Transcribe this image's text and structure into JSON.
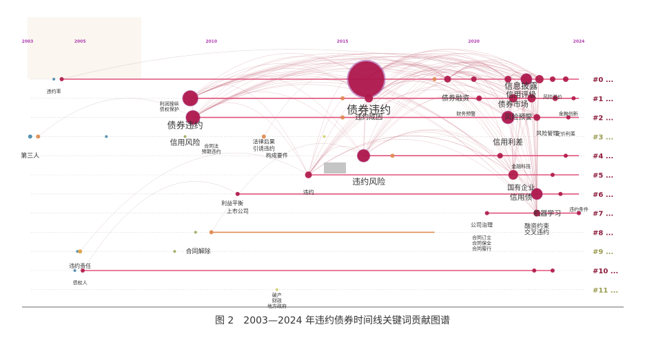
{
  "caption": "图 2　2003—2024 年违约债券时间线关键词贡献图谱",
  "colors": {
    "line_main": "#e0507a",
    "line_green": "#9aaa5a",
    "line_orange": "#e08a50",
    "node_dark": "#b0184a",
    "node_purple": "#9b3a9b",
    "arc": "#c97a8a",
    "year_label": "#b040b0",
    "cluster_red": "#8b1a3a",
    "cluster_olive": "#9a9a50"
  },
  "chart_data": {
    "type": "timeline",
    "x_range": [
      2003,
      2024
    ],
    "year_ticks": [
      "2003",
      "2005",
      "2010",
      "2015",
      "2020",
      "2024"
    ],
    "clusters": [
      {
        "label": "#0 ...",
        "color": "red"
      },
      {
        "label": "#1 ...",
        "color": "red"
      },
      {
        "label": "#2 ...",
        "color": "red"
      },
      {
        "label": "#3 ...",
        "color": "olive"
      },
      {
        "label": "#4 ...",
        "color": "red"
      },
      {
        "label": "#5 ...",
        "color": "red"
      },
      {
        "label": "#6 ...",
        "color": "red"
      },
      {
        "label": "#7 ...",
        "color": "red"
      },
      {
        "label": "#8 ...",
        "color": "red"
      },
      {
        "label": "#9 ...",
        "color": "olive"
      },
      {
        "label": "#10 ...",
        "color": "red"
      },
      {
        "label": "#11 ...",
        "color": "olive"
      }
    ],
    "lines": [
      {
        "row": 0,
        "start": 2004.3,
        "end": 2024.0,
        "color": "main"
      },
      {
        "row": 1,
        "start": 2009.3,
        "end": 2024.0,
        "color": "main"
      },
      {
        "row": 2,
        "start": 2009.3,
        "end": 2024.0,
        "color": "main"
      },
      {
        "row": 4,
        "start": 2015.8,
        "end": 2024.0,
        "color": "main"
      },
      {
        "row": 5,
        "start": 2013.7,
        "end": 2024.0,
        "color": "main"
      },
      {
        "row": 6,
        "start": 2011.0,
        "end": 2024.0,
        "color": "main"
      },
      {
        "row": 7,
        "start": 2020.5,
        "end": 2024.0,
        "color": "main"
      },
      {
        "row": 8,
        "start": 2010.0,
        "end": 2018.5,
        "color": "orange"
      },
      {
        "row": 10,
        "start": 2005.1,
        "end": 2023.0,
        "color": "main"
      }
    ],
    "nodes": [
      {
        "row": 0,
        "year": 2004.0,
        "size": 2,
        "color": "#4a8aaa"
      },
      {
        "row": 0,
        "year": 2004.3,
        "size": 3,
        "color": "#b0184a"
      },
      {
        "row": 0,
        "year": 2015.9,
        "size": 26,
        "color": "#b0184a"
      },
      {
        "row": 0,
        "year": 2018.5,
        "size": 3,
        "color": "#e08a50"
      },
      {
        "row": 0,
        "year": 2019.0,
        "size": 5,
        "color": "#b0184a"
      },
      {
        "row": 0,
        "year": 2020.0,
        "size": 4,
        "color": "#b0184a"
      },
      {
        "row": 0,
        "year": 2021.3,
        "size": 5,
        "color": "#b0184a"
      },
      {
        "row": 0,
        "year": 2022.0,
        "size": 8,
        "color": "#b0184a"
      },
      {
        "row": 0,
        "year": 2022.5,
        "size": 6,
        "color": "#b0184a"
      },
      {
        "row": 0,
        "year": 2023.0,
        "size": 4,
        "color": "#b0184a"
      },
      {
        "row": 0,
        "year": 2023.5,
        "size": 4,
        "color": "#b0184a"
      },
      {
        "row": 1,
        "year": 2009.2,
        "size": 11,
        "color": "#b0184a"
      },
      {
        "row": 1,
        "year": 2016.0,
        "size": 6,
        "color": "#b0184a"
      },
      {
        "row": 1,
        "year": 2015.0,
        "size": 3,
        "color": "#e08a50"
      },
      {
        "row": 1,
        "year": 2020.2,
        "size": 4,
        "color": "#b0184a"
      },
      {
        "row": 1,
        "year": 2021.5,
        "size": 6,
        "color": "#b0184a"
      },
      {
        "row": 1,
        "year": 2022.2,
        "size": 6,
        "color": "#b0184a"
      },
      {
        "row": 1,
        "year": 2023.1,
        "size": 4,
        "color": "#b0184a"
      },
      {
        "row": 1,
        "year": 2023.8,
        "size": 3,
        "color": "#b0184a"
      },
      {
        "row": 2,
        "year": 2009.3,
        "size": 10,
        "color": "#b0184a"
      },
      {
        "row": 2,
        "year": 2015.0,
        "size": 3,
        "color": "#e08a50"
      },
      {
        "row": 2,
        "year": 2021.3,
        "size": 9,
        "color": "#b0184a"
      },
      {
        "row": 2,
        "year": 2022.4,
        "size": 5,
        "color": "#b0184a"
      },
      {
        "row": 2,
        "year": 2023.6,
        "size": 3,
        "color": "#b0184a"
      },
      {
        "row": 3,
        "year": 2003.1,
        "size": 3,
        "color": "#4a8aaa"
      },
      {
        "row": 3,
        "year": 2003.4,
        "size": 3,
        "color": "#e08a50"
      },
      {
        "row": 3,
        "year": 2006.0,
        "size": 2,
        "color": "#4a8aaa"
      },
      {
        "row": 3,
        "year": 2009.0,
        "size": 2,
        "color": "#9aaa5a"
      },
      {
        "row": 3,
        "year": 2012.0,
        "size": 3,
        "color": "#e08a50"
      },
      {
        "row": 3,
        "year": 2014.3,
        "size": 2,
        "color": "#d0d070"
      },
      {
        "row": 4,
        "year": 2015.8,
        "size": 9,
        "color": "#b0184a"
      },
      {
        "row": 4,
        "year": 2016.9,
        "size": 3,
        "color": "#e08a50"
      },
      {
        "row": 4,
        "year": 2021.0,
        "size": 4,
        "color": "#b0184a"
      },
      {
        "row": 4,
        "year": 2023.5,
        "size": 3,
        "color": "#b0184a"
      },
      {
        "row": 5,
        "year": 2013.7,
        "size": 5,
        "color": "#b0184a"
      },
      {
        "row": 5,
        "year": 2021.5,
        "size": 7,
        "color": "#b0184a"
      },
      {
        "row": 5,
        "year": 2023.0,
        "size": 3,
        "color": "#b0184a"
      },
      {
        "row": 6,
        "year": 2011.0,
        "size": 3,
        "color": "#b0184a"
      },
      {
        "row": 6,
        "year": 2022.4,
        "size": 8,
        "color": "#b0184a"
      },
      {
        "row": 6,
        "year": 2023.3,
        "size": 3,
        "color": "#b0184a"
      },
      {
        "row": 7,
        "year": 2020.5,
        "size": 3,
        "color": "#b0184a"
      },
      {
        "row": 7,
        "year": 2022.4,
        "size": 5,
        "color": "#b0184a"
      },
      {
        "row": 7,
        "year": 2024.0,
        "size": 3,
        "color": "#b0184a"
      },
      {
        "row": 8,
        "year": 2009.4,
        "size": 2,
        "color": "#9aaa5a"
      },
      {
        "row": 8,
        "year": 2010.0,
        "size": 3,
        "color": "#e08a50"
      },
      {
        "row": 9,
        "year": 2004.9,
        "size": 2,
        "color": "#4a8aaa"
      },
      {
        "row": 9,
        "year": 2005.0,
        "size": 3,
        "color": "#e0a040"
      },
      {
        "row": 9,
        "year": 2008.6,
        "size": 2,
        "color": "#9aaa5a"
      },
      {
        "row": 10,
        "year": 2004.8,
        "size": 2,
        "color": "#4a8aaa"
      },
      {
        "row": 10,
        "year": 2005.1,
        "size": 3,
        "color": "#b0184a"
      },
      {
        "row": 10,
        "year": 2022.3,
        "size": 3,
        "color": "#b0184a"
      },
      {
        "row": 10,
        "year": 2023.0,
        "size": 3,
        "color": "#b0184a"
      },
      {
        "row": 11,
        "year": 2012.5,
        "size": 2,
        "color": "#d0d070"
      }
    ],
    "labels": [
      {
        "text": "违约率",
        "row": 0,
        "year": 2004.0,
        "dy": 20,
        "size": 7
      },
      {
        "text": "债券违约",
        "row": 0,
        "year": 2016.0,
        "dy": 50,
        "size": 16
      },
      {
        "text": "债券融资",
        "row": 1,
        "year": 2019.3,
        "dy": 3,
        "size": 10
      },
      {
        "text": "信息披露",
        "row": 0,
        "year": 2021.8,
        "dy": 14,
        "size": 12
      },
      {
        "text": "信用评级",
        "row": 0,
        "year": 2021.8,
        "dy": 26,
        "size": 11
      },
      {
        "text": "债券市场",
        "row": 1,
        "year": 2021.5,
        "dy": 12,
        "size": 11
      },
      {
        "text": "风险溢价",
        "row": 1,
        "year": 2023.0,
        "dy": 0,
        "size": 7
      },
      {
        "text": "利润操纵",
        "row": 1,
        "year": 2008.4,
        "dy": 10,
        "size": 7
      },
      {
        "text": "债权保护",
        "row": 1,
        "year": 2008.4,
        "dy": 18,
        "size": 7
      },
      {
        "text": "债券违约",
        "row": 2,
        "year": 2009.0,
        "dy": 16,
        "size": 13
      },
      {
        "text": "违约成因",
        "row": 2,
        "year": 2016.0,
        "dy": 3,
        "size": 10
      },
      {
        "text": "财务预警",
        "row": 2,
        "year": 2019.7,
        "dy": -3,
        "size": 7
      },
      {
        "text": "风险预警",
        "row": 2,
        "year": 2021.7,
        "dy": 3,
        "size": 10
      },
      {
        "text": "金融创新",
        "row": 2,
        "year": 2023.6,
        "dy": -3,
        "size": 7
      },
      {
        "text": "定价利差",
        "row": 3,
        "year": 2023.5,
        "dy": -2,
        "size": 7
      },
      {
        "text": "风险管理",
        "row": 3,
        "year": 2022.8,
        "dy": -2,
        "size": 8
      },
      {
        "text": "信用风险",
        "row": 3,
        "year": 2009.0,
        "dy": 12,
        "size": 11
      },
      {
        "text": "合同法",
        "row": 3,
        "year": 2010.0,
        "dy": 16,
        "size": 7
      },
      {
        "text": "预期违约",
        "row": 3,
        "year": 2010.0,
        "dy": 24,
        "size": 7
      },
      {
        "text": "法律后果",
        "row": 3,
        "year": 2012.0,
        "dy": 10,
        "size": 8
      },
      {
        "text": "引诱违约",
        "row": 3,
        "year": 2012.0,
        "dy": 20,
        "size": 8
      },
      {
        "text": "构成要件",
        "row": 3,
        "year": 2012.5,
        "dy": 30,
        "size": 8
      },
      {
        "text": "第三人",
        "row": 4,
        "year": 2003.1,
        "dy": 3,
        "size": 9
      },
      {
        "text": "信用利差",
        "row": 4,
        "year": 2021.3,
        "dy": -16,
        "size": 11
      },
      {
        "text": "违约风险",
        "row": 5,
        "year": 2016.0,
        "dy": 14,
        "size": 12
      },
      {
        "text": "金融科技",
        "row": 5,
        "year": 2021.8,
        "dy": -10,
        "size": 7
      },
      {
        "text": "国有企业",
        "row": 6,
        "year": 2021.8,
        "dy": -6,
        "size": 10
      },
      {
        "text": "信用债",
        "row": 6,
        "year": 2021.8,
        "dy": 8,
        "size": 11
      },
      {
        "text": "违约",
        "row": 6,
        "year": 2013.7,
        "dy": 0,
        "size": 8
      },
      {
        "text": "利益平衡",
        "row": 6,
        "year": 2010.8,
        "dy": 16,
        "size": 8
      },
      {
        "text": "上市公司",
        "row": 7,
        "year": 2011.0,
        "dy": 0,
        "size": 8
      },
      {
        "text": "机器学习",
        "row": 7,
        "year": 2022.8,
        "dy": 4,
        "size": 10
      },
      {
        "text": "违约条件",
        "row": 7,
        "year": 2024.0,
        "dy": -3,
        "size": 7
      },
      {
        "text": "公司治理",
        "row": 7,
        "year": 2020.3,
        "dy": 20,
        "size": 8
      },
      {
        "text": "融资约束",
        "row": 7,
        "year": 2022.4,
        "dy": 22,
        "size": 9
      },
      {
        "text": "交叉违约",
        "row": 8,
        "year": 2022.4,
        "dy": 3,
        "size": 9
      },
      {
        "text": "合同订立",
        "row": 8,
        "year": 2020.3,
        "dy": 10,
        "size": 7
      },
      {
        "text": "合同保全",
        "row": 8,
        "year": 2020.3,
        "dy": 18,
        "size": 7
      },
      {
        "text": "合同履行",
        "row": 8,
        "year": 2020.3,
        "dy": 26,
        "size": 7
      },
      {
        "text": "合同解除",
        "row": 9,
        "year": 2009.5,
        "dy": 3,
        "size": 9
      },
      {
        "text": "违约责任",
        "row": 10,
        "year": 2005.0,
        "dy": -4,
        "size": 8
      },
      {
        "text": "债权人",
        "row": 10,
        "year": 2005.0,
        "dy": 20,
        "size": 7
      },
      {
        "text": "破产",
        "row": 11,
        "year": 2012.5,
        "dy": 10,
        "size": 7
      },
      {
        "text": "财政",
        "row": 11,
        "year": 2012.5,
        "dy": 18,
        "size": 7
      },
      {
        "text": "地方政府",
        "row": 11,
        "year": 2012.5,
        "dy": 26,
        "size": 7
      }
    ],
    "grid": true
  }
}
